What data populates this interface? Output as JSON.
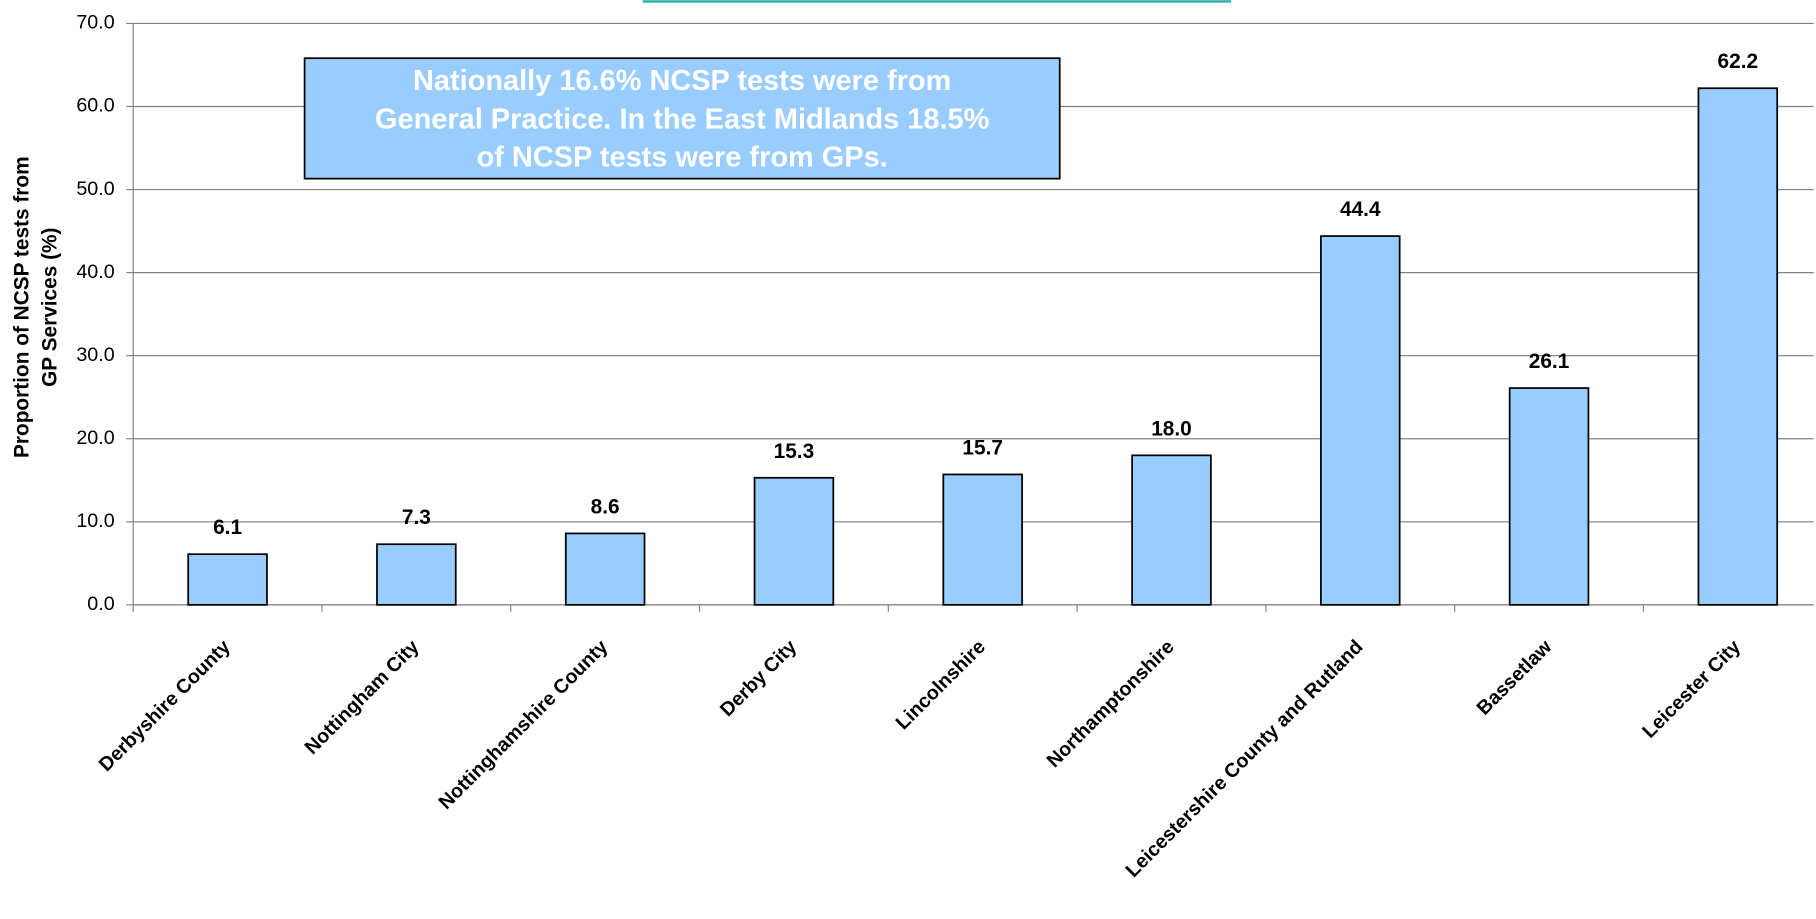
{
  "chart_data": {
    "type": "bar",
    "annotation": [
      "Nationally 16.6% NCSP  tests were from",
      "General Practice. In the East Midlands 18.5%",
      "of NCSP tests were from GPs."
    ],
    "y_label": [
      "Proportion of NCSP tests from",
      "GP Services (%)"
    ],
    "categories": [
      "Derbyshire County",
      "Nottingham City",
      "Nottinghamshire County",
      "Derby City",
      "Lincolnshire",
      "Northamptonshire",
      "Leicestershire County and Rutland",
      "Bassetlaw",
      "Leicester City"
    ],
    "values": [
      6.1,
      7.3,
      8.6,
      15.3,
      15.7,
      18.0,
      44.4,
      26.1,
      62.2
    ],
    "value_labels": [
      "6.1",
      "7.3",
      "8.6",
      "15.3",
      "15.7",
      "18.0",
      "44.4",
      "26.1",
      "62.2"
    ],
    "color": "#99ccff",
    "ylim": [
      0,
      70
    ],
    "yticks": [
      {
        "value": 0,
        "label": "0.0"
      },
      {
        "value": 10,
        "label": "10.0"
      },
      {
        "value": 20,
        "label": "20.0"
      },
      {
        "value": 30,
        "label": "30.0"
      },
      {
        "value": 40,
        "label": "40.0"
      },
      {
        "value": 50,
        "label": "50.0"
      },
      {
        "value": 60,
        "label": "60.0"
      },
      {
        "value": 70,
        "label": "70.0"
      }
    ],
    "grid": true
  }
}
